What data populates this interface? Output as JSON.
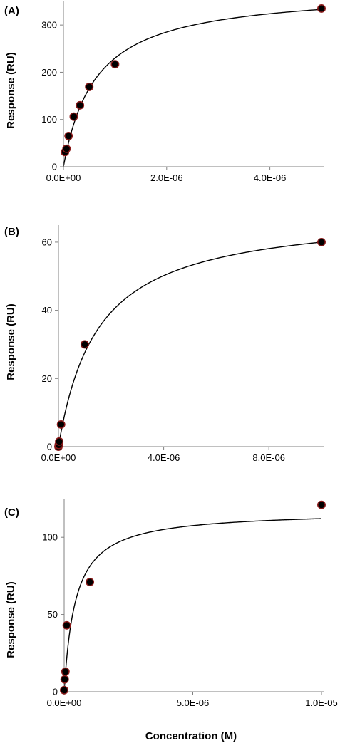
{
  "chart_data": [
    {
      "type": "scatter",
      "panel_label": "(A)",
      "xlabel": "",
      "ylabel": "Response (RU)",
      "xlim": [
        0,
        5e-06
      ],
      "ylim": [
        0,
        350
      ],
      "x_ticks": [
        0,
        2e-06,
        4e-06
      ],
      "x_tick_labels": [
        "0.0E+00",
        "2.0E-06",
        "4.0E-06"
      ],
      "y_ticks": [
        0,
        100,
        200,
        300
      ],
      "y_tick_labels": [
        "0",
        "100",
        "200",
        "300"
      ],
      "points": [
        {
          "x": 3e-08,
          "y": 31
        },
        {
          "x": 6e-08,
          "y": 38
        },
        {
          "x": 1e-07,
          "y": 65
        },
        {
          "x": 2e-07,
          "y": 106
        },
        {
          "x": 3.2e-07,
          "y": 130
        },
        {
          "x": 5e-07,
          "y": 169
        },
        {
          "x": 1e-06,
          "y": 217
        },
        {
          "x": 5e-06,
          "y": 335
        }
      ],
      "fit": {
        "model": "1:1 binding",
        "Rmax": 375,
        "KD": 6.3e-07
      }
    },
    {
      "type": "scatter",
      "panel_label": "(B)",
      "xlabel": "",
      "ylabel": "Response (RU)",
      "xlim": [
        0,
        1e-05
      ],
      "ylim": [
        0,
        65
      ],
      "x_ticks": [
        0,
        4e-06,
        8e-06
      ],
      "x_tick_labels": [
        "0.0E+00",
        "4.0E-06",
        "8.0E-06"
      ],
      "y_ticks": [
        0,
        20,
        40,
        60
      ],
      "y_tick_labels": [
        "0",
        "20",
        "40",
        "60"
      ],
      "points": [
        {
          "x": 0,
          "y": 0
        },
        {
          "x": 1e-08,
          "y": 0.5
        },
        {
          "x": 3e-08,
          "y": 1.5
        },
        {
          "x": 1e-07,
          "y": 6.5
        },
        {
          "x": 1e-06,
          "y": 30
        },
        {
          "x": 1e-05,
          "y": 60
        }
      ],
      "fit": {
        "model": "1:1 binding",
        "Rmax": 69,
        "KD": 1.5e-06
      }
    },
    {
      "type": "scatter",
      "panel_label": "(C)",
      "xlabel": "Concentration (M)",
      "ylabel": "Response (RU)",
      "xlim": [
        0,
        1e-05
      ],
      "ylim": [
        0,
        125
      ],
      "x_ticks": [
        0,
        5e-06,
        1e-05
      ],
      "x_tick_labels": [
        "0.0E+00",
        "5.0E-06",
        "1.0E-05"
      ],
      "y_ticks": [
        0,
        50,
        100
      ],
      "y_tick_labels": [
        "0",
        "50",
        "100"
      ],
      "points": [
        {
          "x": 0,
          "y": 1
        },
        {
          "x": 2e-08,
          "y": 8
        },
        {
          "x": 5e-08,
          "y": 13
        },
        {
          "x": 1e-07,
          "y": 43
        },
        {
          "x": 1e-06,
          "y": 71
        },
        {
          "x": 1e-05,
          "y": 121
        }
      ],
      "fit": {
        "model": "1:1 binding",
        "Rmax": 117,
        "KD": 4.4e-07
      }
    }
  ]
}
